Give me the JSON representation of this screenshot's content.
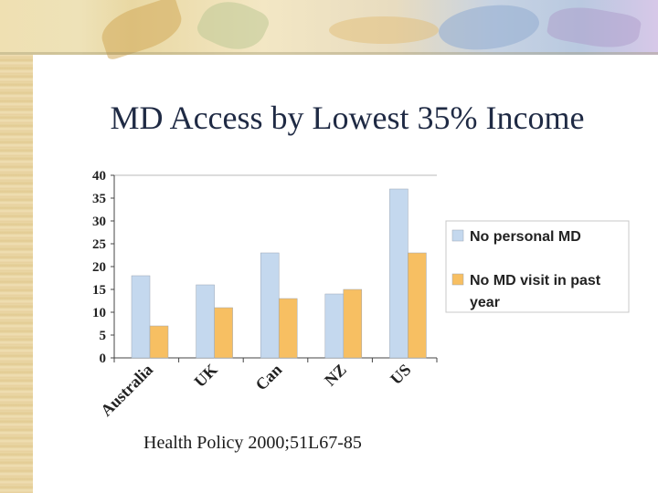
{
  "slide": {
    "title": "MD Access by Lowest 35% Income",
    "citation": "Health Policy 2000;51L67-85"
  },
  "colors": {
    "series1": "#c4d8ee",
    "series2": "#f7bf62",
    "bar_stroke": "#9aa6b4",
    "axis": "#444444",
    "gridline": "#b8b8b8"
  },
  "chart_data": {
    "type": "bar",
    "title": "",
    "xlabel": "",
    "ylabel": "",
    "categories": [
      "Australia",
      "UK",
      "Can",
      "NZ",
      "US"
    ],
    "series": [
      {
        "name": "No personal MD",
        "values": [
          18,
          16,
          23,
          14,
          37
        ]
      },
      {
        "name": "No MD visit in past year",
        "values": [
          7,
          11,
          13,
          15,
          23
        ]
      }
    ],
    "ylim": [
      0,
      40
    ],
    "yticks": [
      0,
      5,
      10,
      15,
      20,
      25,
      30,
      35,
      40
    ],
    "grid": "top border line only",
    "legend_position": "right"
  }
}
